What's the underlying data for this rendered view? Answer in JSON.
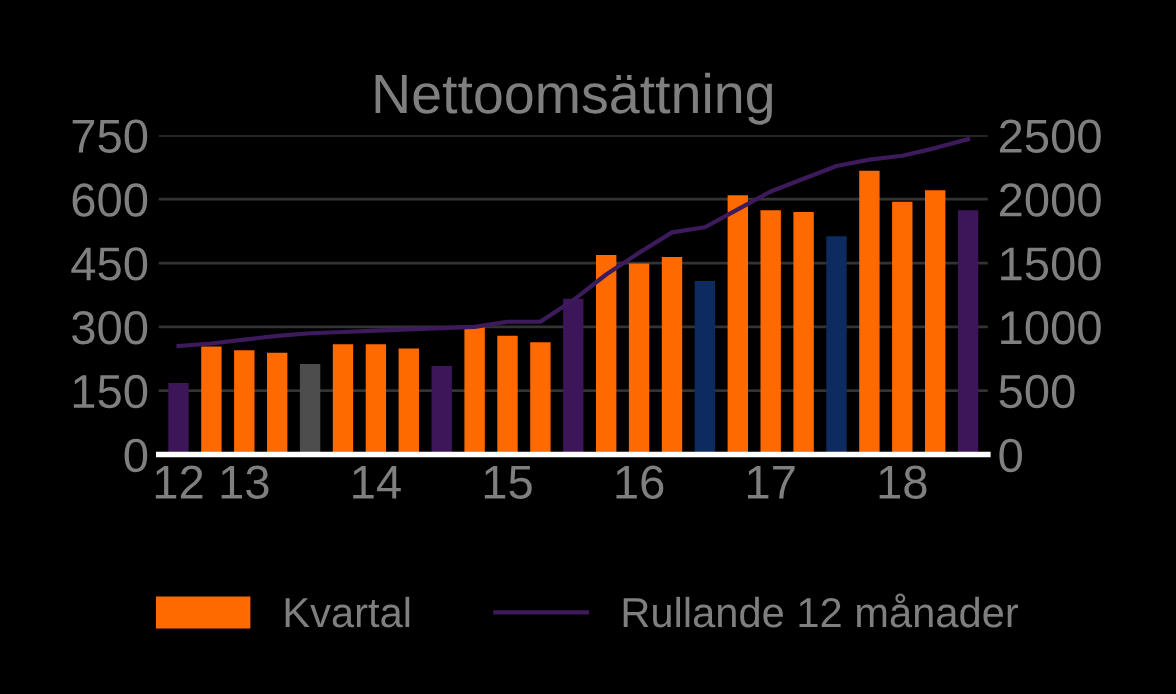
{
  "chart_data": {
    "type": "bar",
    "title": "Nettoomsättning",
    "categories": [
      "12",
      null,
      "13",
      null,
      null,
      null,
      "14",
      null,
      null,
      null,
      "15",
      null,
      null,
      null,
      "16",
      null,
      null,
      null,
      "17",
      null,
      null,
      null,
      "18",
      null,
      null
    ],
    "series": [
      {
        "name": "Kvartal",
        "color": "#ff6a00",
        "colors": [
          "#3d1559",
          "#ff6a00",
          "#ff6a00",
          "#ff6a00",
          "#4d4d4d",
          "#ff6a00",
          "#ff6a00",
          "#ff6a00",
          "#3d1559",
          "#ff6a00",
          "#ff6a00",
          "#ff6a00",
          "#3d1559",
          "#ff6a00",
          "#ff6a00",
          "#ff6a00",
          "#0d2b5e",
          "#ff6a00",
          "#ff6a00",
          "#ff6a00",
          "#0d2b5e",
          "#ff6a00",
          "#ff6a00",
          "#ff6a00",
          "#3d1559"
        ],
        "values": [
          168,
          254,
          245,
          239,
          213,
          259,
          259,
          249,
          208,
          301,
          279,
          264,
          366,
          469,
          449,
          464,
          408,
          609,
          574,
          570,
          513,
          667,
          594,
          621,
          574
        ]
      },
      {
        "name": "Rullande 12 månader",
        "type": "line",
        "axis": "y2",
        "color": "#3d1a5b",
        "values": [
          850,
          870,
          900,
          930,
          950,
          960,
          970,
          980,
          990,
          1000,
          1040,
          1040,
          1210,
          1410,
          1580,
          1740,
          1780,
          1920,
          2060,
          2160,
          2260,
          2310,
          2340,
          2400,
          2470
        ]
      }
    ],
    "ylim": [
      0,
      750
    ],
    "yticks": [
      0,
      150,
      300,
      450,
      600,
      750
    ],
    "y2lim": [
      0,
      2500
    ],
    "y2ticks": [
      0,
      500,
      1000,
      1500,
      2000,
      2500
    ],
    "grid": "y",
    "legend": "bottom",
    "marker": "none",
    "line_style": "solid"
  }
}
